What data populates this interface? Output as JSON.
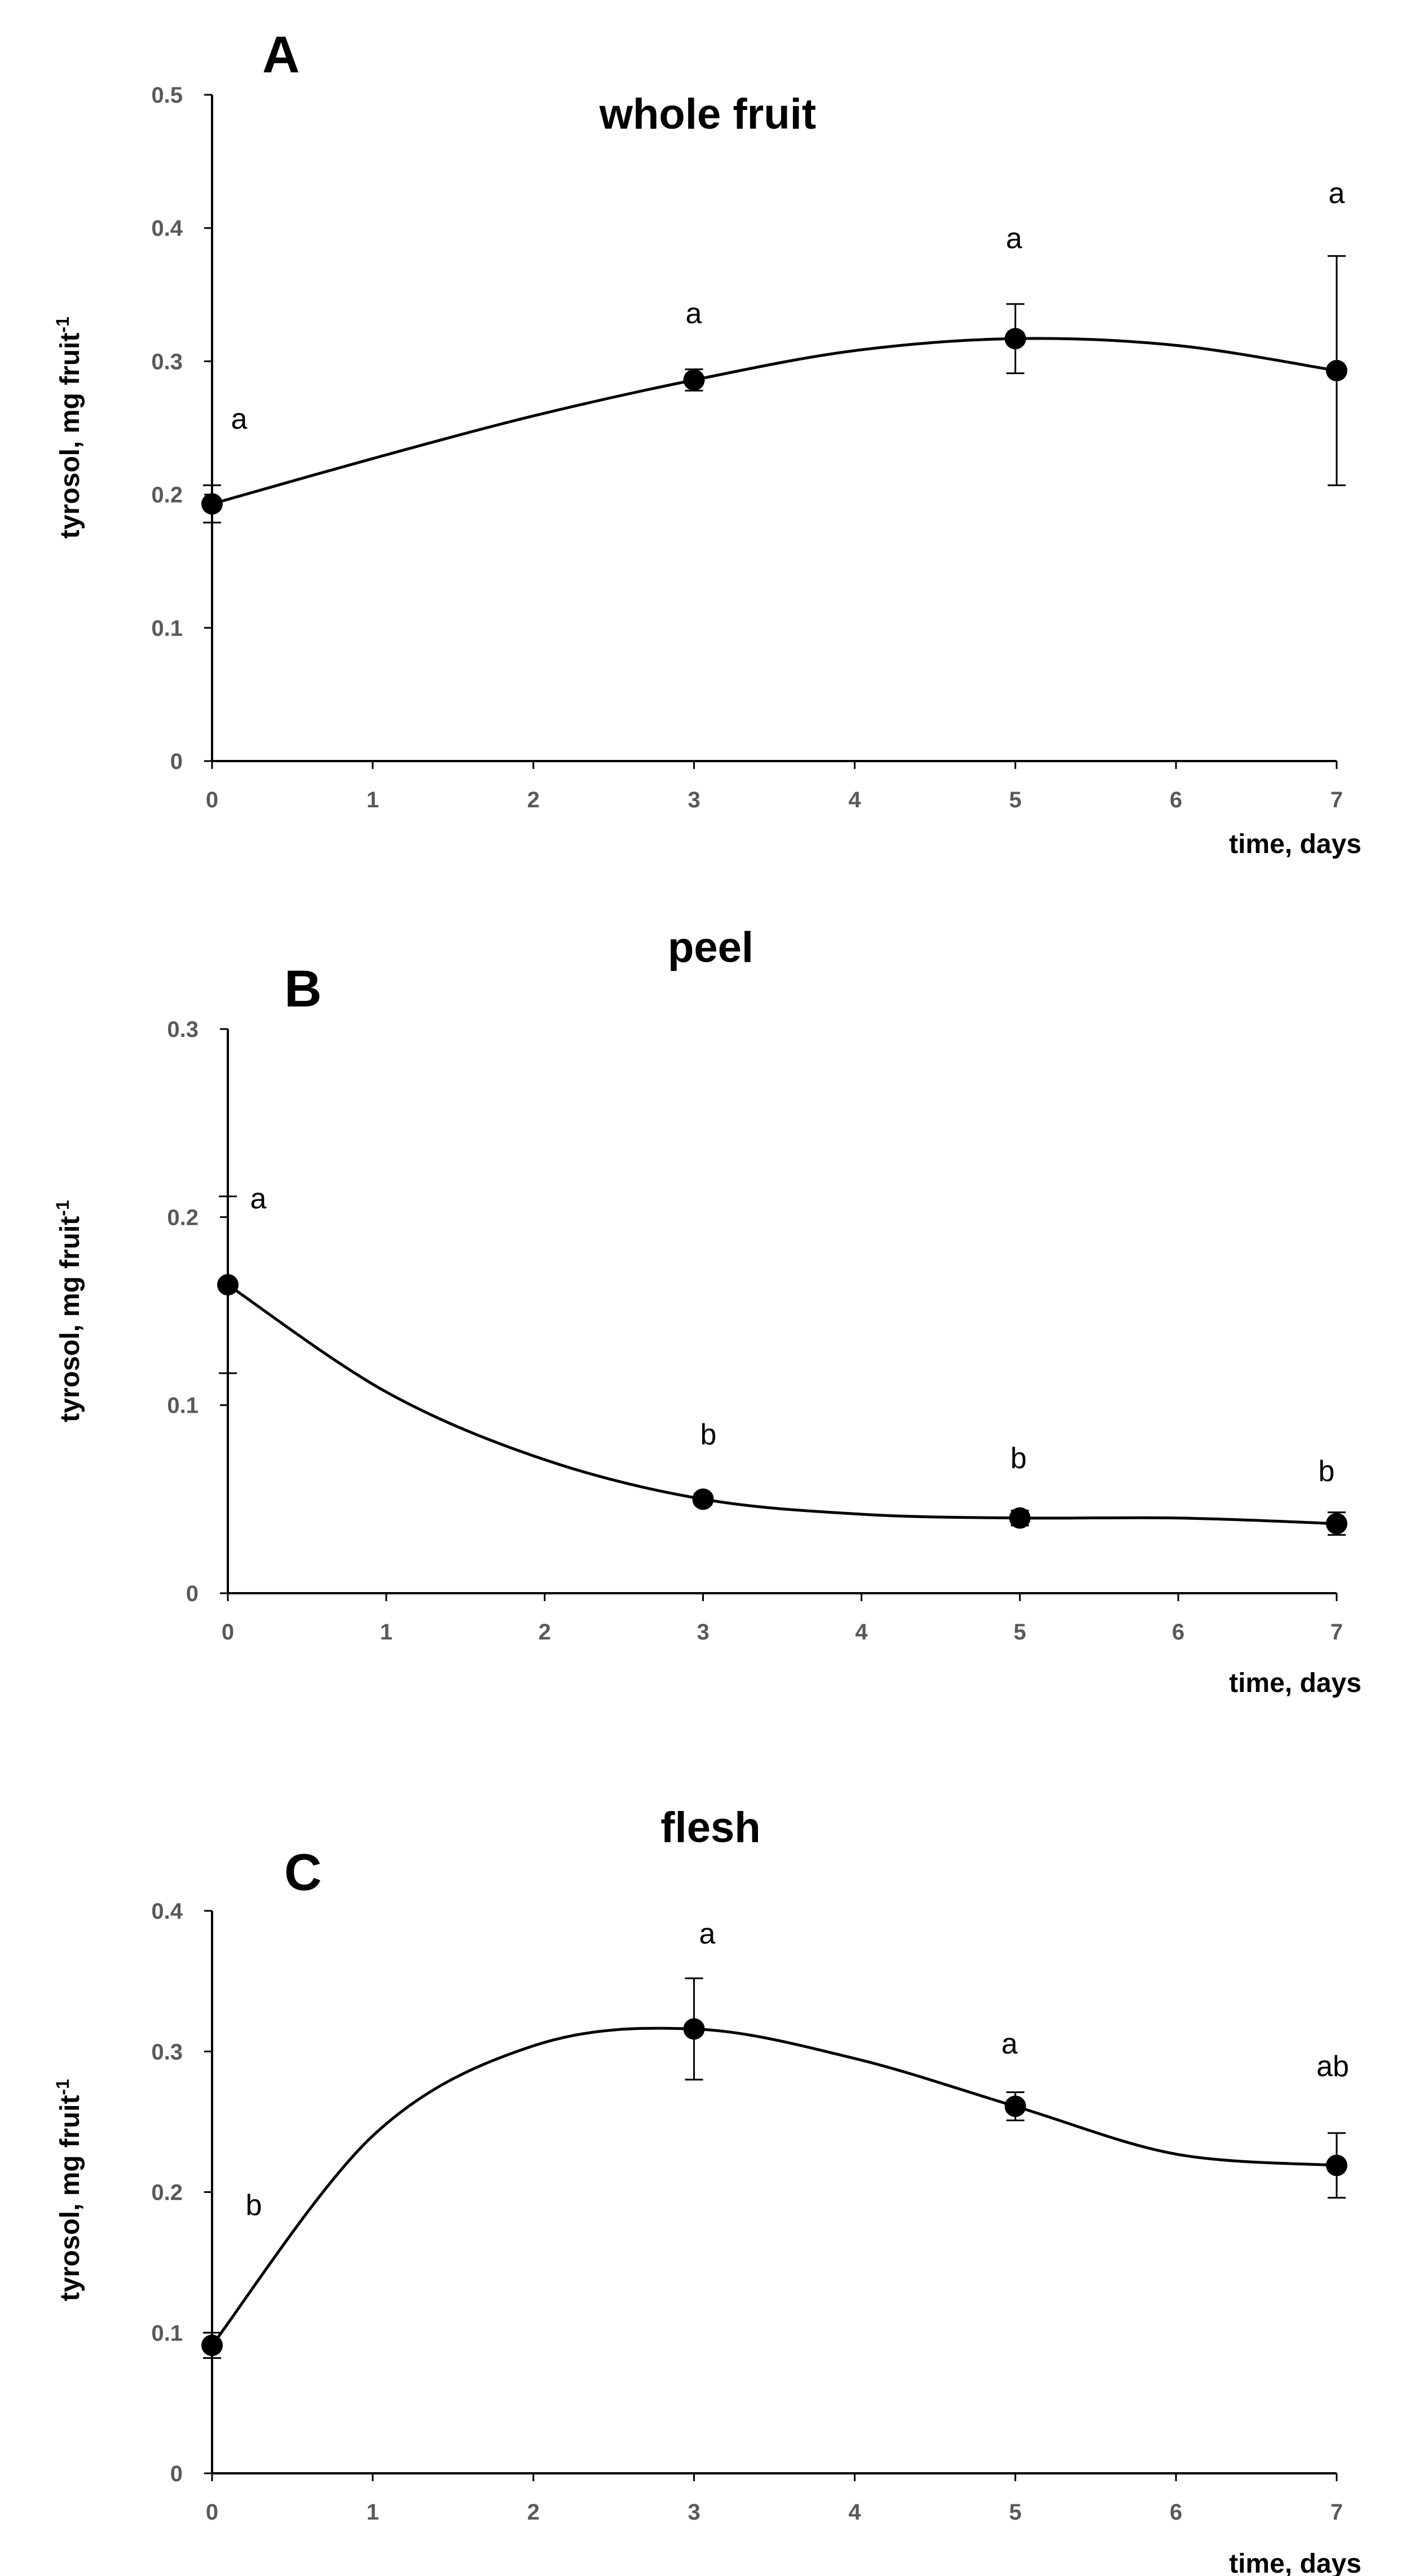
{
  "chart_data": [
    {
      "type": "line",
      "panel": "A",
      "title": "whole fruit",
      "xlabel": "time, days",
      "ylabel": "tyrosol, mg fruit",
      "ylabel_sup": "-1",
      "xlim": [
        0,
        7
      ],
      "ylim": [
        0,
        0.5
      ],
      "xticks": [
        0,
        1,
        2,
        3,
        4,
        5,
        6,
        7
      ],
      "yticks": [
        0,
        0.1,
        0.2,
        0.3,
        0.4,
        0.5
      ],
      "ytick_labels": [
        "0",
        "0.1",
        "0.2",
        "0.3",
        "0.4",
        "0.5"
      ],
      "curve": [
        [
          0,
          0.193
        ],
        [
          1,
          0.227
        ],
        [
          2,
          0.259
        ],
        [
          3,
          0.286
        ],
        [
          4,
          0.308
        ],
        [
          5,
          0.317
        ],
        [
          6,
          0.312
        ],
        [
          7,
          0.293
        ]
      ],
      "points": [
        {
          "x": 0,
          "y": 0.193,
          "err": 0.014,
          "label": "a"
        },
        {
          "x": 3,
          "y": 0.286,
          "err": 0.008,
          "label": "a"
        },
        {
          "x": 5,
          "y": 0.317,
          "err": 0.026,
          "label": "a"
        },
        {
          "x": 7,
          "y": 0.293,
          "err": 0.086,
          "label": "a"
        }
      ]
    },
    {
      "type": "line",
      "panel": "B",
      "title": "peel",
      "xlabel": "time, days",
      "ylabel": "tyrosol, mg fruit",
      "ylabel_sup": "-1",
      "xlim": [
        0,
        7
      ],
      "ylim": [
        0,
        0.3
      ],
      "xticks": [
        0,
        1,
        2,
        3,
        4,
        5,
        6,
        7
      ],
      "yticks": [
        0,
        0.1,
        0.2,
        0.3
      ],
      "ytick_labels": [
        "0",
        "0.1",
        "0.2",
        "0.3"
      ],
      "curve": [
        [
          0,
          0.164
        ],
        [
          1,
          0.107
        ],
        [
          2,
          0.071
        ],
        [
          3,
          0.05
        ],
        [
          4,
          0.042
        ],
        [
          5,
          0.04
        ],
        [
          6,
          0.04
        ],
        [
          7,
          0.037
        ]
      ],
      "points": [
        {
          "x": 0,
          "y": 0.164,
          "err": 0.047,
          "label": "a"
        },
        {
          "x": 3,
          "y": 0.05,
          "err": 0.003,
          "label": "b"
        },
        {
          "x": 5,
          "y": 0.04,
          "err": 0.004,
          "label": "b"
        },
        {
          "x": 7,
          "y": 0.037,
          "err": 0.006,
          "label": "b"
        }
      ]
    },
    {
      "type": "line",
      "panel": "C",
      "title": "flesh",
      "xlabel": "time, days",
      "ylabel": "tyrosol, mg fruit",
      "ylabel_sup": "-1",
      "xlim": [
        0,
        7
      ],
      "ylim": [
        0,
        0.4
      ],
      "xticks": [
        0,
        1,
        2,
        3,
        4,
        5,
        6,
        7
      ],
      "yticks": [
        0,
        0.1,
        0.2,
        0.3,
        0.4
      ],
      "ytick_labels": [
        "0",
        "0.1",
        "0.2",
        "0.3",
        "0.4"
      ],
      "curve": [
        [
          0,
          0.091
        ],
        [
          1,
          0.24
        ],
        [
          2,
          0.304
        ],
        [
          3,
          0.316
        ],
        [
          4,
          0.295
        ],
        [
          5,
          0.261
        ],
        [
          6,
          0.227
        ],
        [
          7,
          0.219
        ]
      ],
      "points": [
        {
          "x": 0,
          "y": 0.091,
          "err": 0.009,
          "label": "b"
        },
        {
          "x": 3,
          "y": 0.316,
          "err": 0.036,
          "label": "a"
        },
        {
          "x": 5,
          "y": 0.261,
          "err": 0.01,
          "label": "a"
        },
        {
          "x": 7,
          "y": 0.219,
          "err": 0.023,
          "label": "ab"
        }
      ]
    }
  ]
}
